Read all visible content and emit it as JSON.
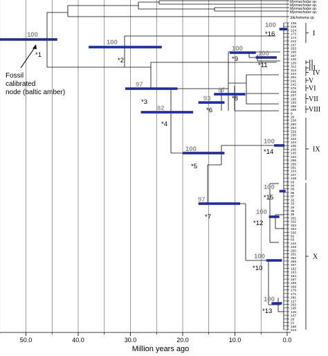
{
  "axis": {
    "label": "Million years ago",
    "ticks": [
      "50.0",
      "40.0",
      "30.0",
      "20.0",
      "10.0",
      "0.0"
    ],
    "tick_values": [
      50,
      40,
      30,
      20,
      10,
      0
    ]
  },
  "outgroups": [
    "Myrmecholax sp.",
    "Myrmecholax sp.",
    "Myrmecholax sp.",
    "Myrmecholax sp.",
    "Stichotrema sp."
  ],
  "fossil_annotation": {
    "line1": "Fossil",
    "line2": "calibrated",
    "line3": "node (baltic amber)"
  },
  "nodes": [
    {
      "label": "*1",
      "support": "100",
      "age": 50.0,
      "ci": [
        55.0,
        44.0
      ],
      "support_color": "#888888"
    },
    {
      "label": "*2",
      "support": "100",
      "age": 33.0,
      "ci": [
        38.0,
        24.0
      ],
      "support_color": "#888888"
    },
    {
      "label": "*3",
      "support": "97",
      "age": 26.0,
      "ci": [
        31.0,
        21.0
      ],
      "support_color": "#999999"
    },
    {
      "label": "*4",
      "support": "82",
      "age": 24.0,
      "ci": [
        28.0,
        18.0
      ],
      "support_color": "#999999"
    },
    {
      "label": "*5",
      "support": "100",
      "age": 17.0,
      "ci": [
        20.0,
        12.0
      ],
      "support_color": "#888888"
    },
    {
      "label": "*6",
      "support": "93",
      "age": 15.0,
      "ci": [
        17.0,
        12.0
      ],
      "support_color": "#999999"
    },
    {
      "label": "*7",
      "support": "97",
      "age": 15.0,
      "ci": [
        17.0,
        9.0
      ],
      "support_color": "#999999"
    },
    {
      "label": "*8",
      "support": "97",
      "age": 11.0,
      "ci": [
        14.0,
        8.0
      ],
      "support_color": "#999999"
    },
    {
      "label": "*9",
      "support": "100",
      "age": 10.0,
      "ci": [
        11.0,
        6.0
      ],
      "support_color": "#888888"
    },
    {
      "label": "*10",
      "support": "100",
      "age": 2.5,
      "ci": [
        4.0,
        1.0
      ],
      "support_color": "#888888"
    },
    {
      "label": "*11",
      "support": "100",
      "age": 5.0,
      "ci": [
        6.0,
        2.0
      ],
      "support_color": "#888888"
    },
    {
      "label": "*12",
      "support": "100",
      "age": 3.0,
      "ci": [
        3.5,
        1.5
      ],
      "support_color": "#888888"
    },
    {
      "label": "*13",
      "support": "100",
      "age": 2.5,
      "ci": [
        3.0,
        1.0
      ],
      "support_color": "#888888"
    },
    {
      "label": "*14",
      "support": "100",
      "age": 1.5,
      "ci": [
        2.5,
        0.5
      ],
      "support_color": "#888888"
    },
    {
      "label": "*15",
      "support": "100",
      "age": 1.0,
      "ci": [
        1.5,
        0.3
      ],
      "support_color": "#888888"
    },
    {
      "label": "*16",
      "support": "100",
      "age": 1.0,
      "ci": [
        1.5,
        0.0
      ],
      "support_color": "#888888"
    }
  ],
  "clades": [
    "I",
    "II",
    "III",
    "IV",
    "V",
    "VI",
    "VII",
    "VIII",
    "IX",
    "X"
  ],
  "tip_labels": [
    "138",
    "219",
    "224",
    "173",
    "174",
    "212",
    "247",
    "253",
    "166",
    "167",
    "125",
    "126",
    "312",
    "313",
    "244",
    "264",
    "241",
    "242",
    "276",
    "228",
    "227",
    "198",
    "199",
    "258",
    "259",
    "9",
    "26",
    "238",
    "260",
    "264",
    "229",
    "230",
    "103",
    "104",
    "105",
    "106",
    "145",
    "234",
    "256",
    "256",
    "261",
    "104",
    "247",
    "248",
    "93",
    "94",
    "95",
    "96",
    "97",
    "32",
    "33",
    "34",
    "35",
    "36",
    "331",
    "332",
    "333",
    "334",
    "335",
    "62",
    "63",
    "243",
    "249",
    "250",
    "251",
    "252",
    "256",
    "257",
    "162",
    "163",
    "164",
    "167",
    "168",
    "169",
    "178",
    "171",
    "191",
    "127",
    "263",
    "145",
    "146",
    "147",
    "20",
    "21",
    "168",
    "213"
  ]
}
